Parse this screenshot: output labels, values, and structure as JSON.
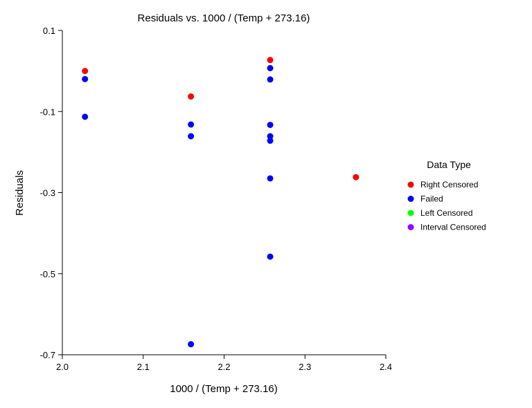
{
  "chart_data": {
    "type": "scatter",
    "title": "Residuals vs. 1000 / (Temp + 273.16)",
    "xlabel": "1000 / (Temp + 273.16)",
    "ylabel": "Residuals",
    "xlim": [
      2.0,
      2.4
    ],
    "ylim": [
      -0.7,
      0.1
    ],
    "xticks": [
      "2.0",
      "2.1",
      "2.2",
      "2.3",
      "2.4"
    ],
    "yticks": [
      "-0.7",
      "-0.5",
      "-0.3",
      "-0.1",
      "0.1"
    ],
    "grid": false,
    "legend": {
      "title": "Data Type",
      "placement": "right",
      "entries": [
        {
          "name": "Right Censored",
          "color": "#ff0000"
        },
        {
          "name": "Failed",
          "color": "#0000ff"
        },
        {
          "name": "Left Censored",
          "color": "#00ff00"
        },
        {
          "name": "Interval Censored",
          "color": "#9900ff"
        }
      ]
    },
    "series": [
      {
        "name": "Right Censored",
        "color": "#ff0000",
        "points": [
          {
            "x": 2.028,
            "y": 0.0
          },
          {
            "x": 2.159,
            "y": -0.063
          },
          {
            "x": 2.257,
            "y": 0.027
          },
          {
            "x": 2.363,
            "y": -0.262
          }
        ]
      },
      {
        "name": "Failed",
        "color": "#0000ff",
        "points": [
          {
            "x": 2.028,
            "y": -0.02
          },
          {
            "x": 2.028,
            "y": -0.113
          },
          {
            "x": 2.159,
            "y": -0.132
          },
          {
            "x": 2.159,
            "y": -0.161
          },
          {
            "x": 2.159,
            "y": -0.674
          },
          {
            "x": 2.257,
            "y": 0.007
          },
          {
            "x": 2.257,
            "y": -0.021
          },
          {
            "x": 2.257,
            "y": -0.133
          },
          {
            "x": 2.257,
            "y": -0.161
          },
          {
            "x": 2.257,
            "y": -0.172
          },
          {
            "x": 2.257,
            "y": -0.265
          },
          {
            "x": 2.257,
            "y": -0.458
          }
        ]
      },
      {
        "name": "Left Censored",
        "color": "#00ff00",
        "points": []
      },
      {
        "name": "Interval Censored",
        "color": "#9900ff",
        "points": []
      }
    ]
  }
}
